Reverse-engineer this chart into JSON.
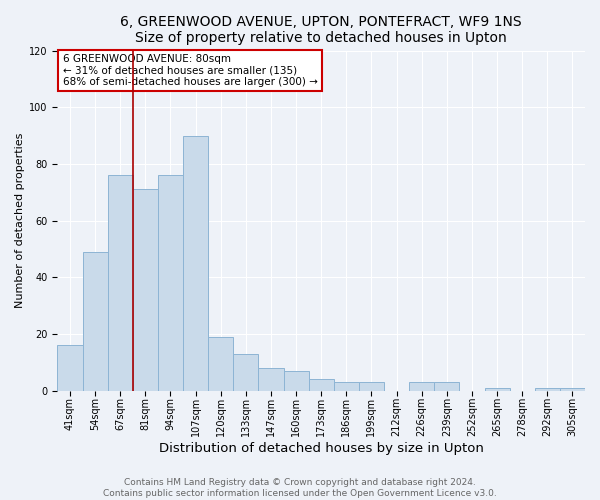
{
  "title": "6, GREENWOOD AVENUE, UPTON, PONTEFRACT, WF9 1NS",
  "subtitle": "Size of property relative to detached houses in Upton",
  "xlabel": "Distribution of detached houses by size in Upton",
  "ylabel": "Number of detached properties",
  "categories": [
    "41sqm",
    "54sqm",
    "67sqm",
    "81sqm",
    "94sqm",
    "107sqm",
    "120sqm",
    "133sqm",
    "147sqm",
    "160sqm",
    "173sqm",
    "186sqm",
    "199sqm",
    "212sqm",
    "226sqm",
    "239sqm",
    "252sqm",
    "265sqm",
    "278sqm",
    "292sqm",
    "305sqm"
  ],
  "values": [
    16,
    49,
    76,
    71,
    76,
    90,
    19,
    13,
    8,
    7,
    4,
    3,
    3,
    0,
    3,
    3,
    0,
    1,
    0,
    1,
    1
  ],
  "bar_color": "#c9daea",
  "bar_edge_color": "#8db4d4",
  "bar_linewidth": 0.7,
  "vline_color": "#aa0000",
  "annotation_text": "6 GREENWOOD AVENUE: 80sqm\n← 31% of detached houses are smaller (135)\n68% of semi-detached houses are larger (300) →",
  "annotation_box_color": "#cc0000",
  "ylim": [
    0,
    120
  ],
  "yticks": [
    0,
    20,
    40,
    60,
    80,
    100,
    120
  ],
  "bg_color": "#eef2f8",
  "grid_color": "#ffffff",
  "footnote": "Contains HM Land Registry data © Crown copyright and database right 2024.\nContains public sector information licensed under the Open Government Licence v3.0.",
  "title_fontsize": 10,
  "subtitle_fontsize": 9,
  "xlabel_fontsize": 9.5,
  "ylabel_fontsize": 8,
  "tick_fontsize": 7,
  "annotation_fontsize": 7.5,
  "footnote_fontsize": 6.5
}
